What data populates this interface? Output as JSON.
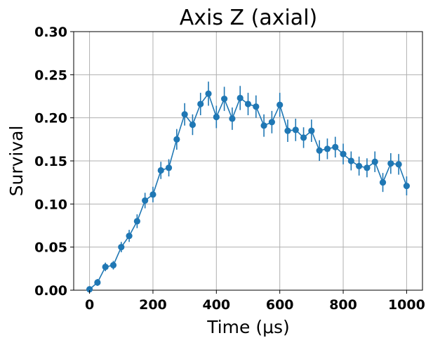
{
  "chart_data": {
    "type": "line",
    "title": "Axis Z (axial)",
    "xlabel": "Time (μs)",
    "ylabel": "Survival",
    "xlim": [
      -50,
      1050
    ],
    "ylim": [
      0,
      0.3
    ],
    "xticks": [
      0,
      200,
      400,
      600,
      800,
      1000
    ],
    "yticks": [
      0.0,
      0.05,
      0.1,
      0.15,
      0.2,
      0.25,
      0.3
    ],
    "xtick_labels": [
      "0",
      "200",
      "400",
      "600",
      "800",
      "1000"
    ],
    "ytick_labels": [
      "0.00",
      "0.05",
      "0.10",
      "0.15",
      "0.20",
      "0.25",
      "0.30"
    ],
    "grid": true,
    "colors": {
      "series": "#1f77b4"
    },
    "series": [
      {
        "x": [
          0,
          25,
          50,
          75,
          100,
          125,
          150,
          175,
          200,
          225,
          250,
          275,
          300,
          325,
          350,
          375,
          400,
          425,
          450,
          475,
          500,
          525,
          550,
          575,
          600,
          625,
          650,
          675,
          700,
          725,
          750,
          775,
          800,
          825,
          850,
          875,
          900,
          925,
          950,
          975,
          1000
        ],
        "y": [
          0.001,
          0.009,
          0.027,
          0.029,
          0.05,
          0.063,
          0.08,
          0.104,
          0.111,
          0.139,
          0.142,
          0.175,
          0.204,
          0.192,
          0.216,
          0.228,
          0.201,
          0.222,
          0.199,
          0.223,
          0.216,
          0.213,
          0.191,
          0.195,
          0.215,
          0.185,
          0.186,
          0.177,
          0.185,
          0.162,
          0.164,
          0.166,
          0.158,
          0.15,
          0.144,
          0.142,
          0.149,
          0.125,
          0.147,
          0.146,
          0.121
        ],
        "yerr": [
          0.003,
          0.004,
          0.005,
          0.005,
          0.006,
          0.007,
          0.008,
          0.009,
          0.009,
          0.01,
          0.01,
          0.012,
          0.013,
          0.012,
          0.013,
          0.014,
          0.013,
          0.014,
          0.013,
          0.014,
          0.013,
          0.013,
          0.013,
          0.013,
          0.014,
          0.013,
          0.013,
          0.012,
          0.013,
          0.012,
          0.012,
          0.012,
          0.012,
          0.011,
          0.011,
          0.011,
          0.012,
          0.011,
          0.012,
          0.012,
          0.011
        ]
      }
    ]
  }
}
